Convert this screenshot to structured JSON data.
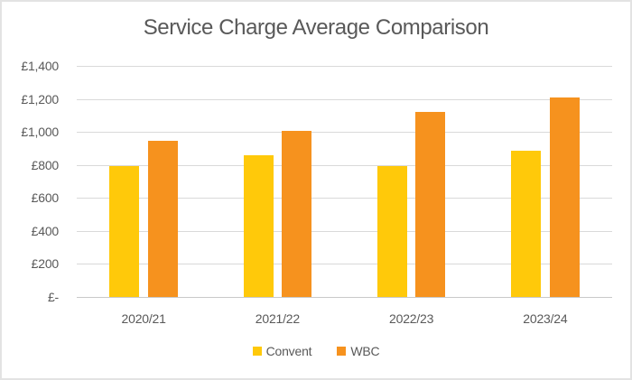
{
  "chart_data": {
    "type": "bar",
    "title": "Service Charge Average Comparison",
    "categories": [
      "2020/21",
      "2021/22",
      "2022/23",
      "2023/24"
    ],
    "series": [
      {
        "name": "Convent",
        "color": "#FFC90A",
        "values": [
          795,
          860,
          795,
          885
        ]
      },
      {
        "name": "WBC",
        "color": "#F6921E",
        "values": [
          945,
          1005,
          1120,
          1210
        ]
      }
    ],
    "xlabel": "",
    "ylabel": "",
    "ylim": [
      0,
      1400
    ],
    "y_ticks": [
      {
        "value": 0,
        "label": "£-"
      },
      {
        "value": 200,
        "label": "£200"
      },
      {
        "value": 400,
        "label": "£400"
      },
      {
        "value": 600,
        "label": "£600"
      },
      {
        "value": 800,
        "label": "£800"
      },
      {
        "value": 1000,
        "label": "£1,000"
      },
      {
        "value": 1200,
        "label": "£1,200"
      },
      {
        "value": 1400,
        "label": "£1,400"
      }
    ],
    "grid": true,
    "legend_position": "bottom"
  },
  "colors": {
    "text": "#595959",
    "gridline": "#d9d9d9",
    "baseline": "#c9c9c9",
    "frame_border": "#e3e3e3",
    "background": "#ffffff"
  }
}
